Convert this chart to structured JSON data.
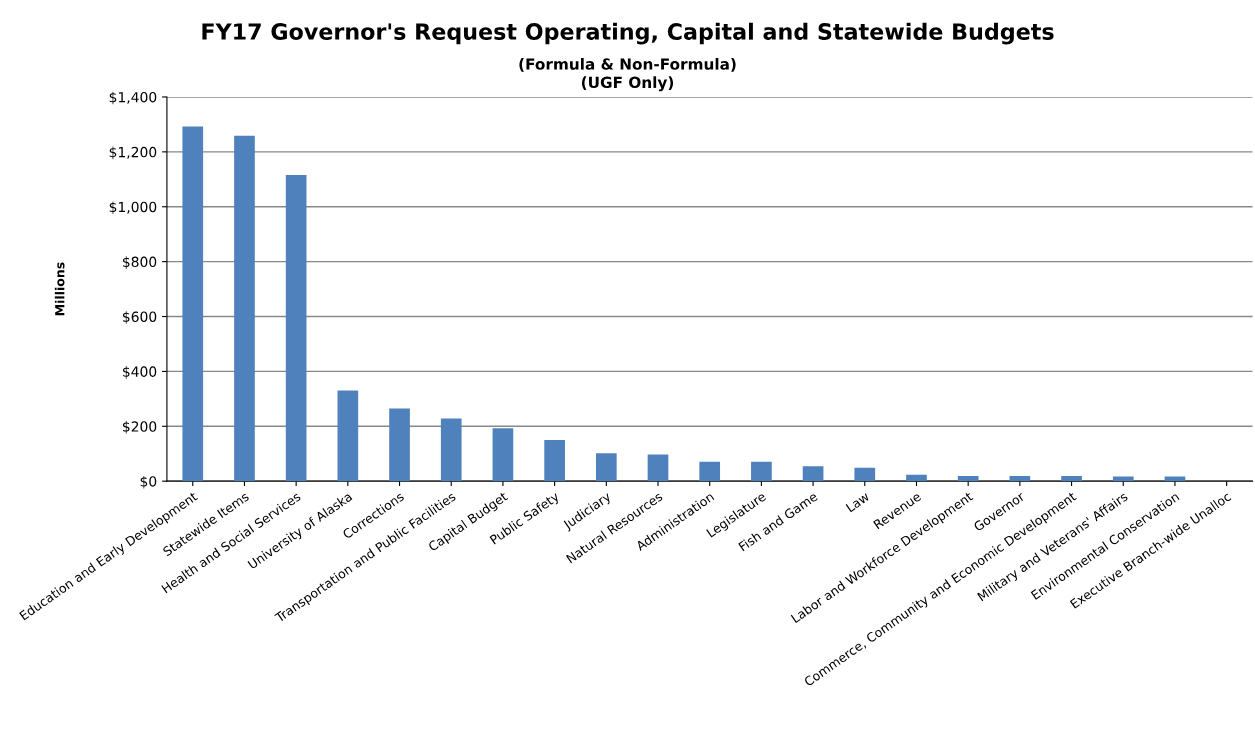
{
  "chart_data": {
    "type": "bar",
    "title": "FY17 Governor's Request Operating, Capital and Statewide Budgets",
    "subtitle": "(Formula & Non-Formula)\n(UGF Only)",
    "ylabel": "Millions",
    "categories": [
      "Education and Early Development",
      "Statewide Items",
      "Health and Social Services",
      "University of Alaska",
      "Corrections",
      "Transportation and Public Facilities",
      "Capital Budget",
      "Public Safety",
      "Judiciary",
      "Natural Resources",
      "Administration",
      "Legislature",
      "Fish and Game",
      "Law",
      "Revenue",
      "Labor and Workforce Development",
      "Governor",
      "Commerce, Community and Economic Development",
      "Military and Veterans' Affairs",
      "Environmental Conservation",
      "Executive Branch-wide Unalloc"
    ],
    "values": [
      1292,
      1259,
      1116,
      330,
      265,
      228,
      193,
      150,
      102,
      97,
      71,
      71,
      54,
      49,
      23,
      19,
      19,
      19,
      17,
      17,
      0
    ],
    "color": "#4f81bd",
    "ylim": [
      0,
      1400
    ],
    "yticks": [
      {
        "value": 0,
        "label": "$0"
      },
      {
        "value": 200,
        "label": "$200"
      },
      {
        "value": 400,
        "label": "$400"
      },
      {
        "value": 600,
        "label": "$600"
      },
      {
        "value": 800,
        "label": "$800"
      },
      {
        "value": 1000,
        "label": "$1,000"
      },
      {
        "value": 1200,
        "label": "$1,200"
      },
      {
        "value": 1400,
        "label": "$1,400"
      }
    ],
    "grid": "y"
  }
}
